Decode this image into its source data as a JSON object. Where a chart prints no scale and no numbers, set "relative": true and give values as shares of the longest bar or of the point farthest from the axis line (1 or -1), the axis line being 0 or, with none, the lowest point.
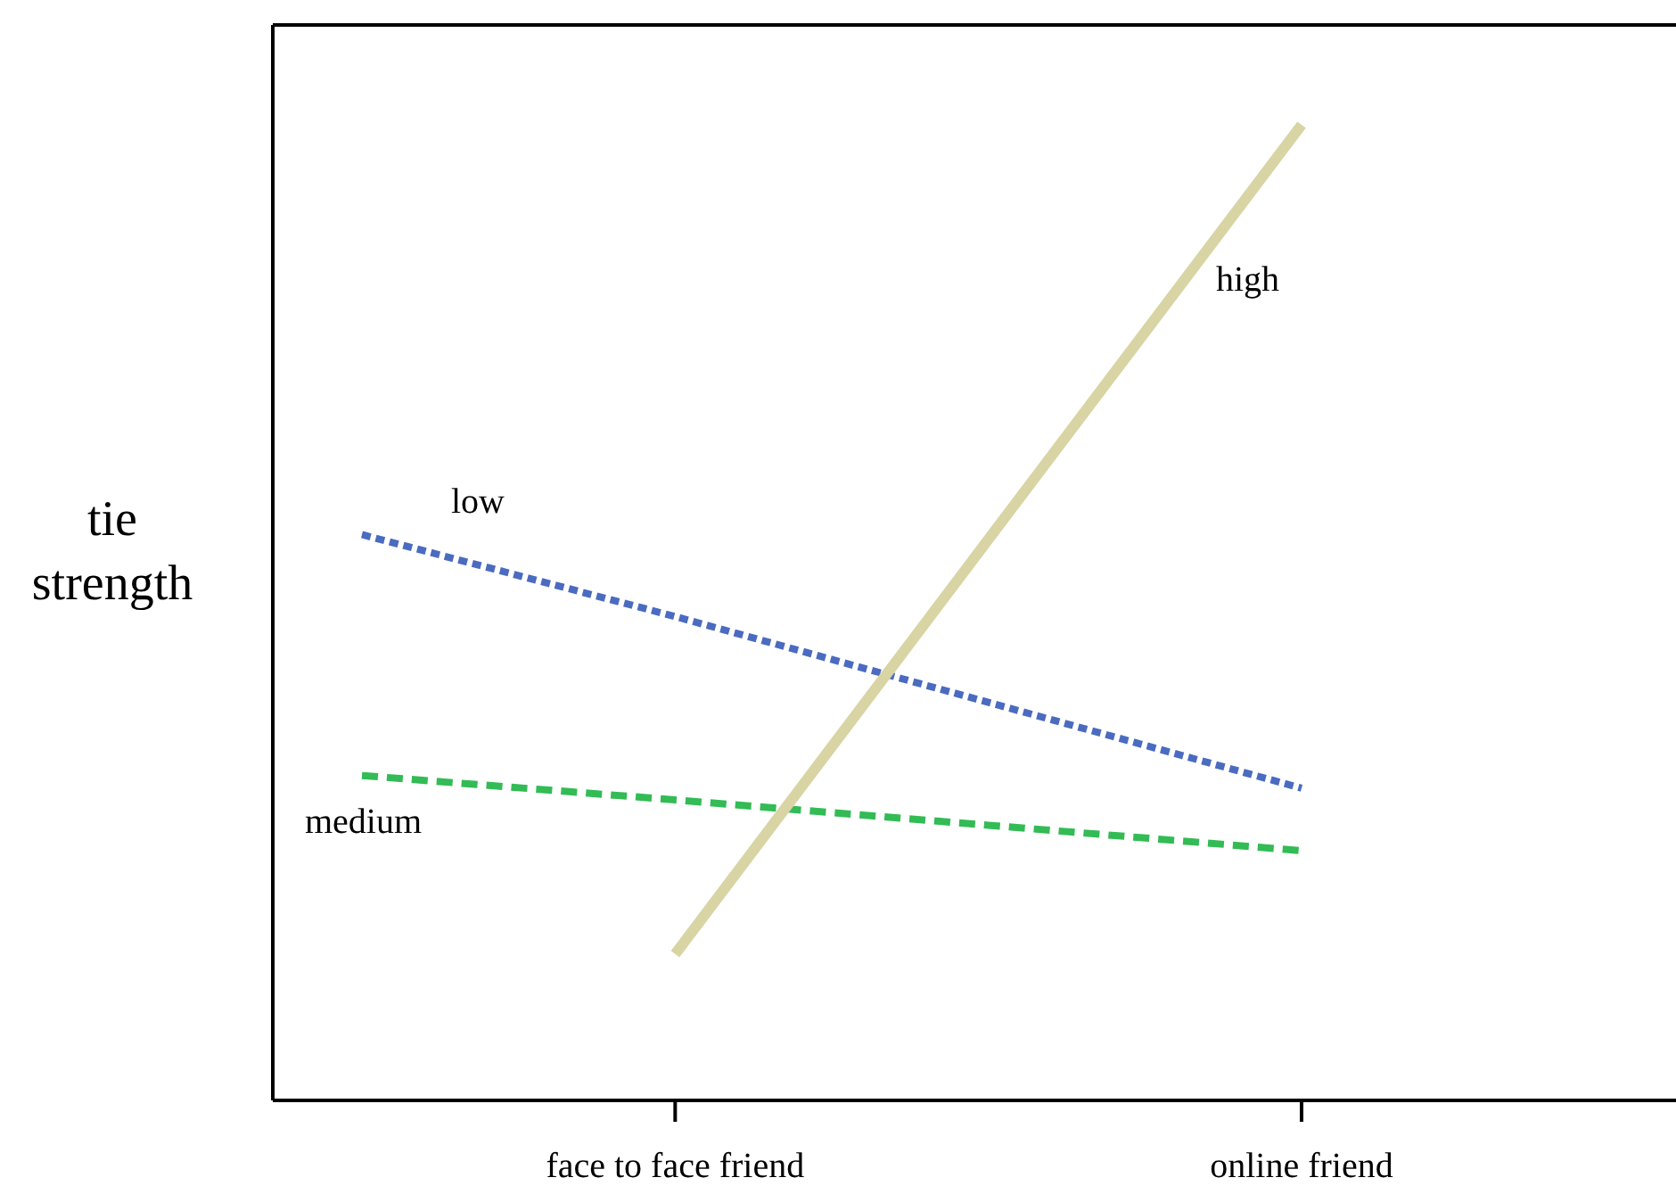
{
  "chart_data": {
    "type": "line",
    "ylabel": "tie strength",
    "relative": true,
    "categories": [
      null,
      "face to face friend",
      null,
      "online friend"
    ],
    "grid": false,
    "marker": "none",
    "series": [
      {
        "name": "low",
        "color": "#4a6bc0",
        "line_style": "dotted",
        "values": [
          0.58,
          0.496,
          0.408,
          0.32
        ]
      },
      {
        "name": "medium",
        "color": "#33bb55",
        "line_style": "dashed",
        "values": [
          0.333,
          0.308,
          0.282,
          0.256
        ]
      },
      {
        "name": "high",
        "color": "#d8d4a4",
        "line_style": "solid",
        "values": [
          null,
          0.15,
          0.575,
          1
        ]
      }
    ]
  }
}
